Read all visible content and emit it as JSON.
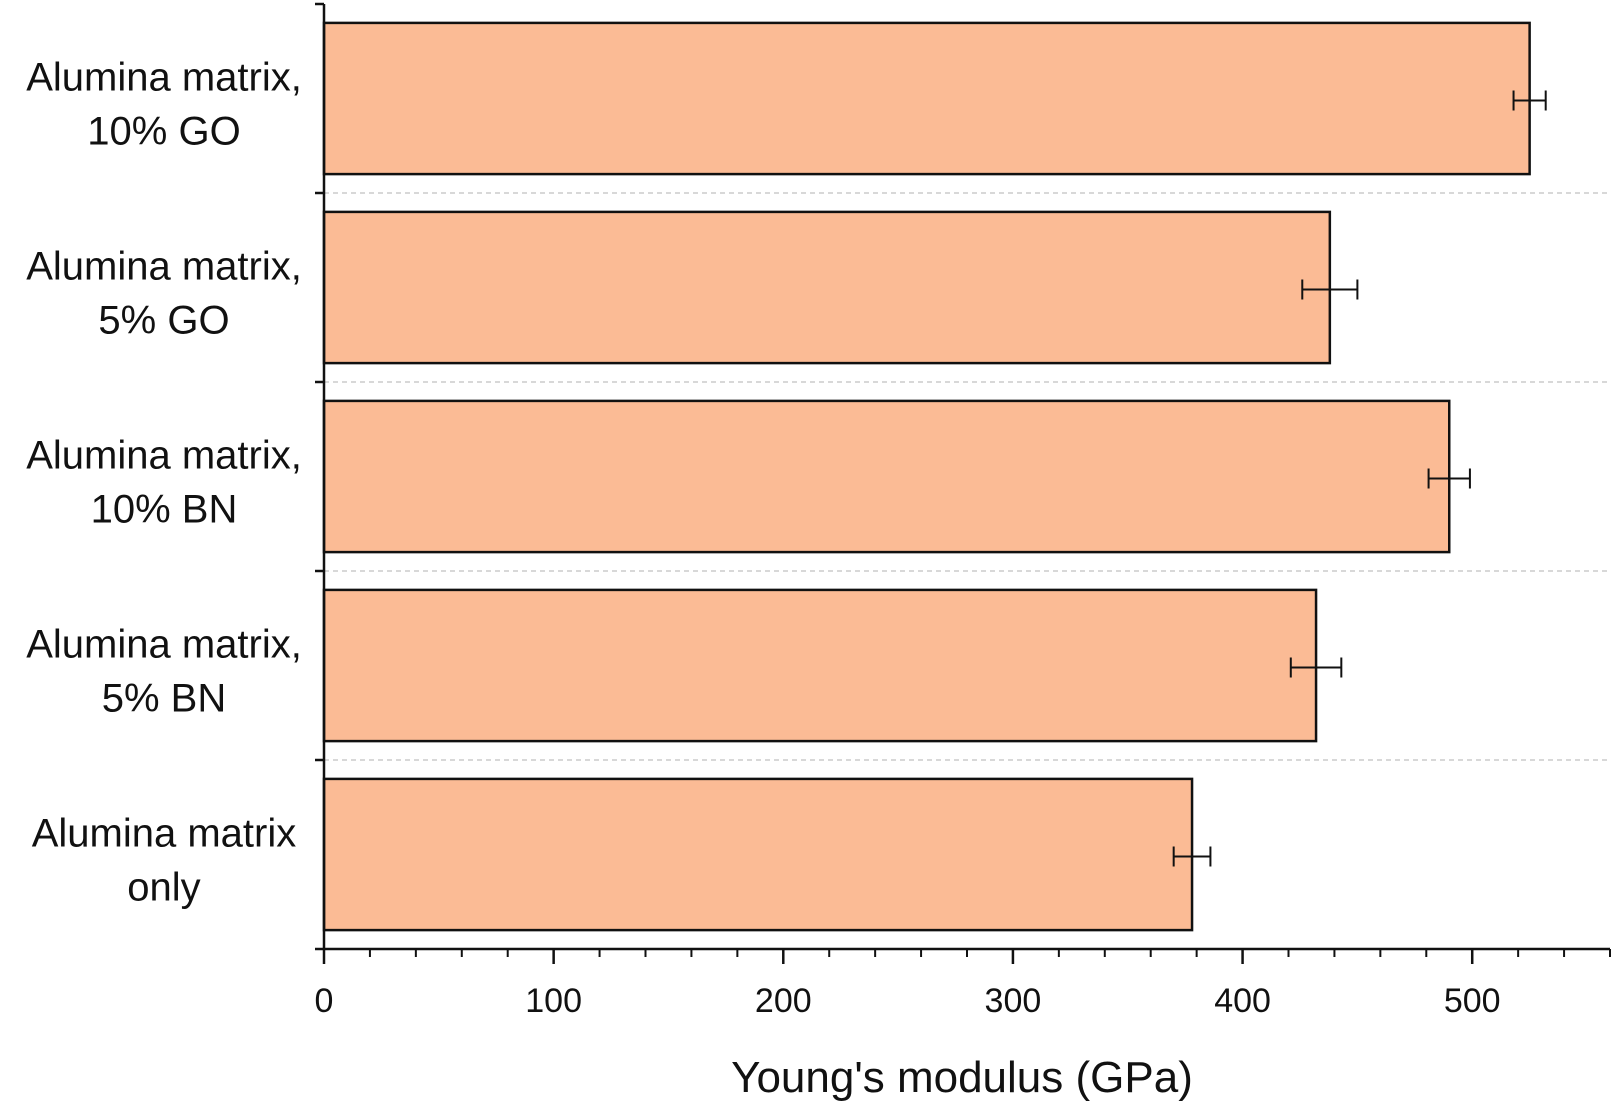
{
  "chart_data": {
    "type": "bar",
    "orientation": "horizontal",
    "categories": [
      [
        "Alumina matrix,",
        "10% GO"
      ],
      [
        "Alumina matrix,",
        "5% GO"
      ],
      [
        "Alumina matrix,",
        "10% BN"
      ],
      [
        "Alumina matrix,",
        "5% BN"
      ],
      [
        "Alumina matrix",
        "only"
      ]
    ],
    "values": [
      525,
      438,
      490,
      432,
      378
    ],
    "errors": [
      7,
      12,
      9,
      11,
      8
    ],
    "xlabel": "Young's modulus (GPa)",
    "xlim": [
      0,
      560
    ],
    "xticks": [
      0,
      100,
      200,
      300,
      400,
      500
    ],
    "minor_tick_step": 20,
    "grid": "dashed horizontal separators between bars",
    "bar_color": "#FBBB95",
    "bar_edge_color": "#111111"
  }
}
